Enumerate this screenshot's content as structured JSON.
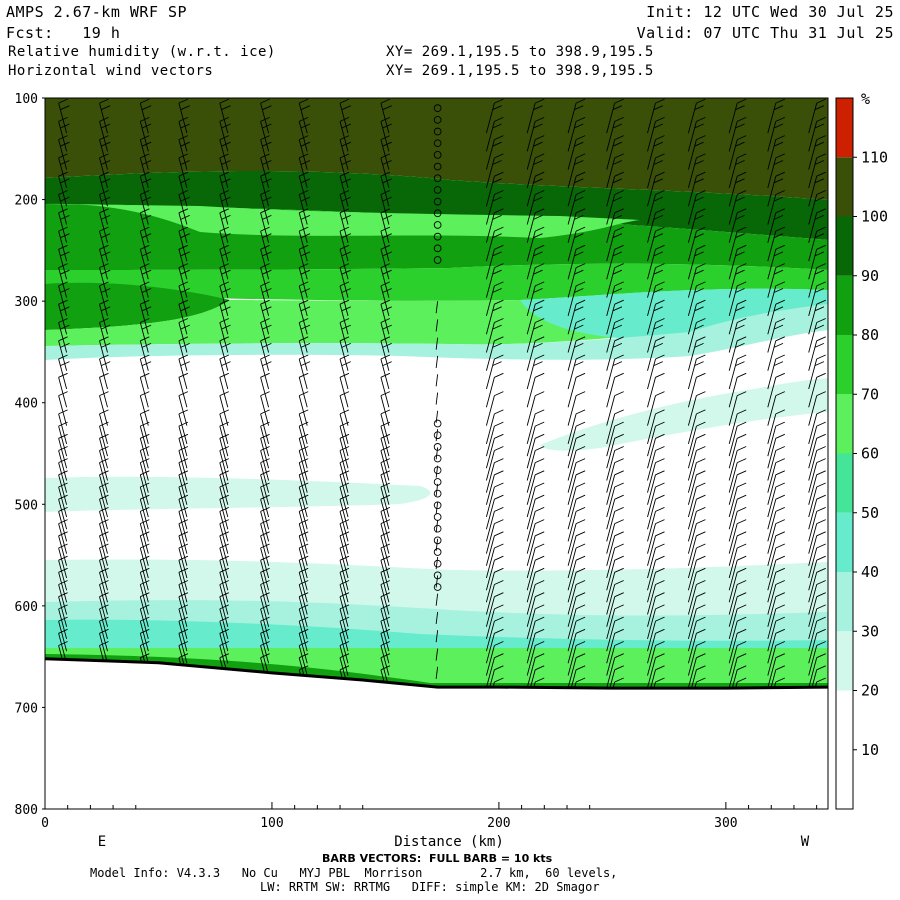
{
  "header": {
    "model": "AMPS 2.67-km WRF SP",
    "init": "Init: 12 UTC Wed 30 Jul 25",
    "fcst": "Fcst:   19 h",
    "valid": "Valid: 07 UTC Thu 31 Jul 25",
    "field1": "Relative humidity (w.r.t. ice)",
    "xy1": "XY= 269.1,195.5 to 398.9,195.5",
    "field2": "Horizontal wind vectors",
    "xy2": "XY= 269.1,195.5 to 398.9,195.5"
  },
  "footer": {
    "barb_note": "BARB VECTORS:  FULL BARB = 10 kts",
    "model_info": "Model Info: V4.3.3   No Cu   MYJ PBL  Morrison        2.7 km,  60 levels,",
    "physics": "LW: RRTM SW: RRTMG   DIFF: simple KM: 2D Smagor"
  },
  "chart_data": {
    "type": "heatmap",
    "title": "Relative humidity (w.r.t. ice)",
    "xlabel": "Distance (km)",
    "ylabel": "",
    "x_ticks": [
      0,
      100,
      200,
      300
    ],
    "y_ticks": [
      100,
      200,
      300,
      400,
      500,
      600,
      700,
      800
    ],
    "xlim": [
      0,
      345
    ],
    "ylim": [
      800,
      100
    ],
    "y_axis": "pressure (hPa), inverted",
    "direction_labels": {
      "left": "E",
      "right": "W"
    },
    "colorbar": {
      "unit": "%",
      "levels": [
        10,
        20,
        30,
        40,
        50,
        60,
        70,
        80,
        90,
        100,
        110
      ],
      "colors": [
        "#ffffff",
        "#ffffff",
        "#d2f8ec",
        "#a6f2de",
        "#66eccc",
        "#44e598",
        "#5cf05c",
        "#2cd02c",
        "#10a010",
        "#086808",
        "#3a5008",
        "#cc2000"
      ]
    },
    "rh_zones": [
      {
        "from_p": 100,
        "to_p": 170,
        "rh": ">100"
      },
      {
        "from_p": 170,
        "to_p": 200,
        "rh": "90-100"
      },
      {
        "from_p": 200,
        "to_p": 280,
        "rh": "70-90"
      },
      {
        "from_p": 280,
        "to_p": 340,
        "rh": "50-80"
      },
      {
        "from_p": 340,
        "to_p": 570,
        "rh": "<30"
      },
      {
        "from_p": 570,
        "to_p": 660,
        "rh": "30-60"
      }
    ],
    "terrain": [
      {
        "x": 0,
        "p": 652
      },
      {
        "x": 50,
        "p": 656
      },
      {
        "x": 100,
        "p": 666
      },
      {
        "x": 140,
        "p": 673
      },
      {
        "x": 173,
        "p": 680
      },
      {
        "x": 200,
        "p": 680
      },
      {
        "x": 250,
        "p": 681
      },
      {
        "x": 300,
        "p": 681
      },
      {
        "x": 345,
        "p": 680
      }
    ],
    "barb_columns_km": [
      6,
      24,
      42,
      59,
      77,
      95,
      112,
      130,
      148,
      173,
      198,
      216,
      234,
      251,
      269,
      287,
      305,
      322,
      340
    ],
    "calm_column_km": 173,
    "legend_placement": "right"
  },
  "colors": {
    "terrain": "#000000",
    "frame": "#000000"
  }
}
